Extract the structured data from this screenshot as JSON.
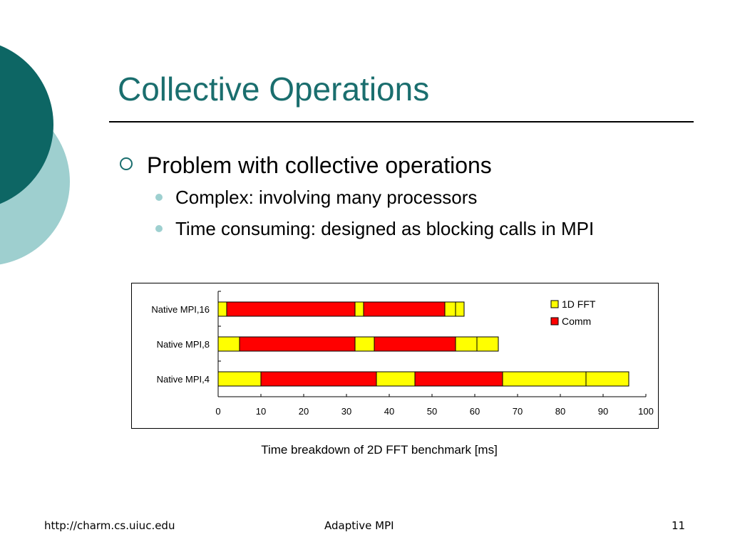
{
  "slide": {
    "title": "Collective Operations",
    "bullet_main": "Problem with collective operations",
    "sub_bullets": [
      "Complex: involving many processors",
      "Time consuming: designed as blocking calls in MPI"
    ],
    "caption": "Time breakdown of 2D FFT benchmark [ms]",
    "footer": {
      "left": "http://charm.cs.uiuc.edu",
      "center": "Adaptive MPI",
      "right": "11"
    },
    "colors": {
      "title": "#1a6e6e",
      "decor_dark": "#0d6664",
      "decor_light": "#9ecfcf"
    }
  },
  "chart_data": {
    "type": "bar",
    "orientation": "horizontal",
    "stacked": true,
    "categories": [
      "Native MPI,16",
      "Native MPI,8",
      "Native MPI,4"
    ],
    "legend": [
      {
        "name": "1D FFT",
        "color": "#ffff00"
      },
      {
        "name": "Comm",
        "color": "#ff0000"
      }
    ],
    "legend_position": "top-right",
    "xlim": [
      0,
      100
    ],
    "xticks": [
      0,
      10,
      20,
      30,
      40,
      50,
      60,
      70,
      80,
      90,
      100
    ],
    "segments": [
      [
        {
          "series": "1D FFT",
          "value": 2
        },
        {
          "series": "Comm",
          "value": 30
        },
        {
          "series": "1D FFT",
          "value": 2
        },
        {
          "series": "Comm",
          "value": 19
        },
        {
          "series": "1D FFT",
          "value": 2.5
        },
        {
          "series": "1D FFT",
          "value": 2
        }
      ],
      [
        {
          "series": "1D FFT",
          "value": 5
        },
        {
          "series": "Comm",
          "value": 27
        },
        {
          "series": "1D FFT",
          "value": 4.5
        },
        {
          "series": "Comm",
          "value": 19
        },
        {
          "series": "1D FFT",
          "value": 5
        },
        {
          "series": "1D FFT",
          "value": 5
        }
      ],
      [
        {
          "series": "1D FFT",
          "value": 10
        },
        {
          "series": "Comm",
          "value": 27
        },
        {
          "series": "1D FFT",
          "value": 9
        },
        {
          "series": "Comm",
          "value": 20.5
        },
        {
          "series": "1D FFT",
          "value": 19.5
        },
        {
          "series": "1D FFT",
          "value": 10
        }
      ]
    ],
    "grid": false
  }
}
